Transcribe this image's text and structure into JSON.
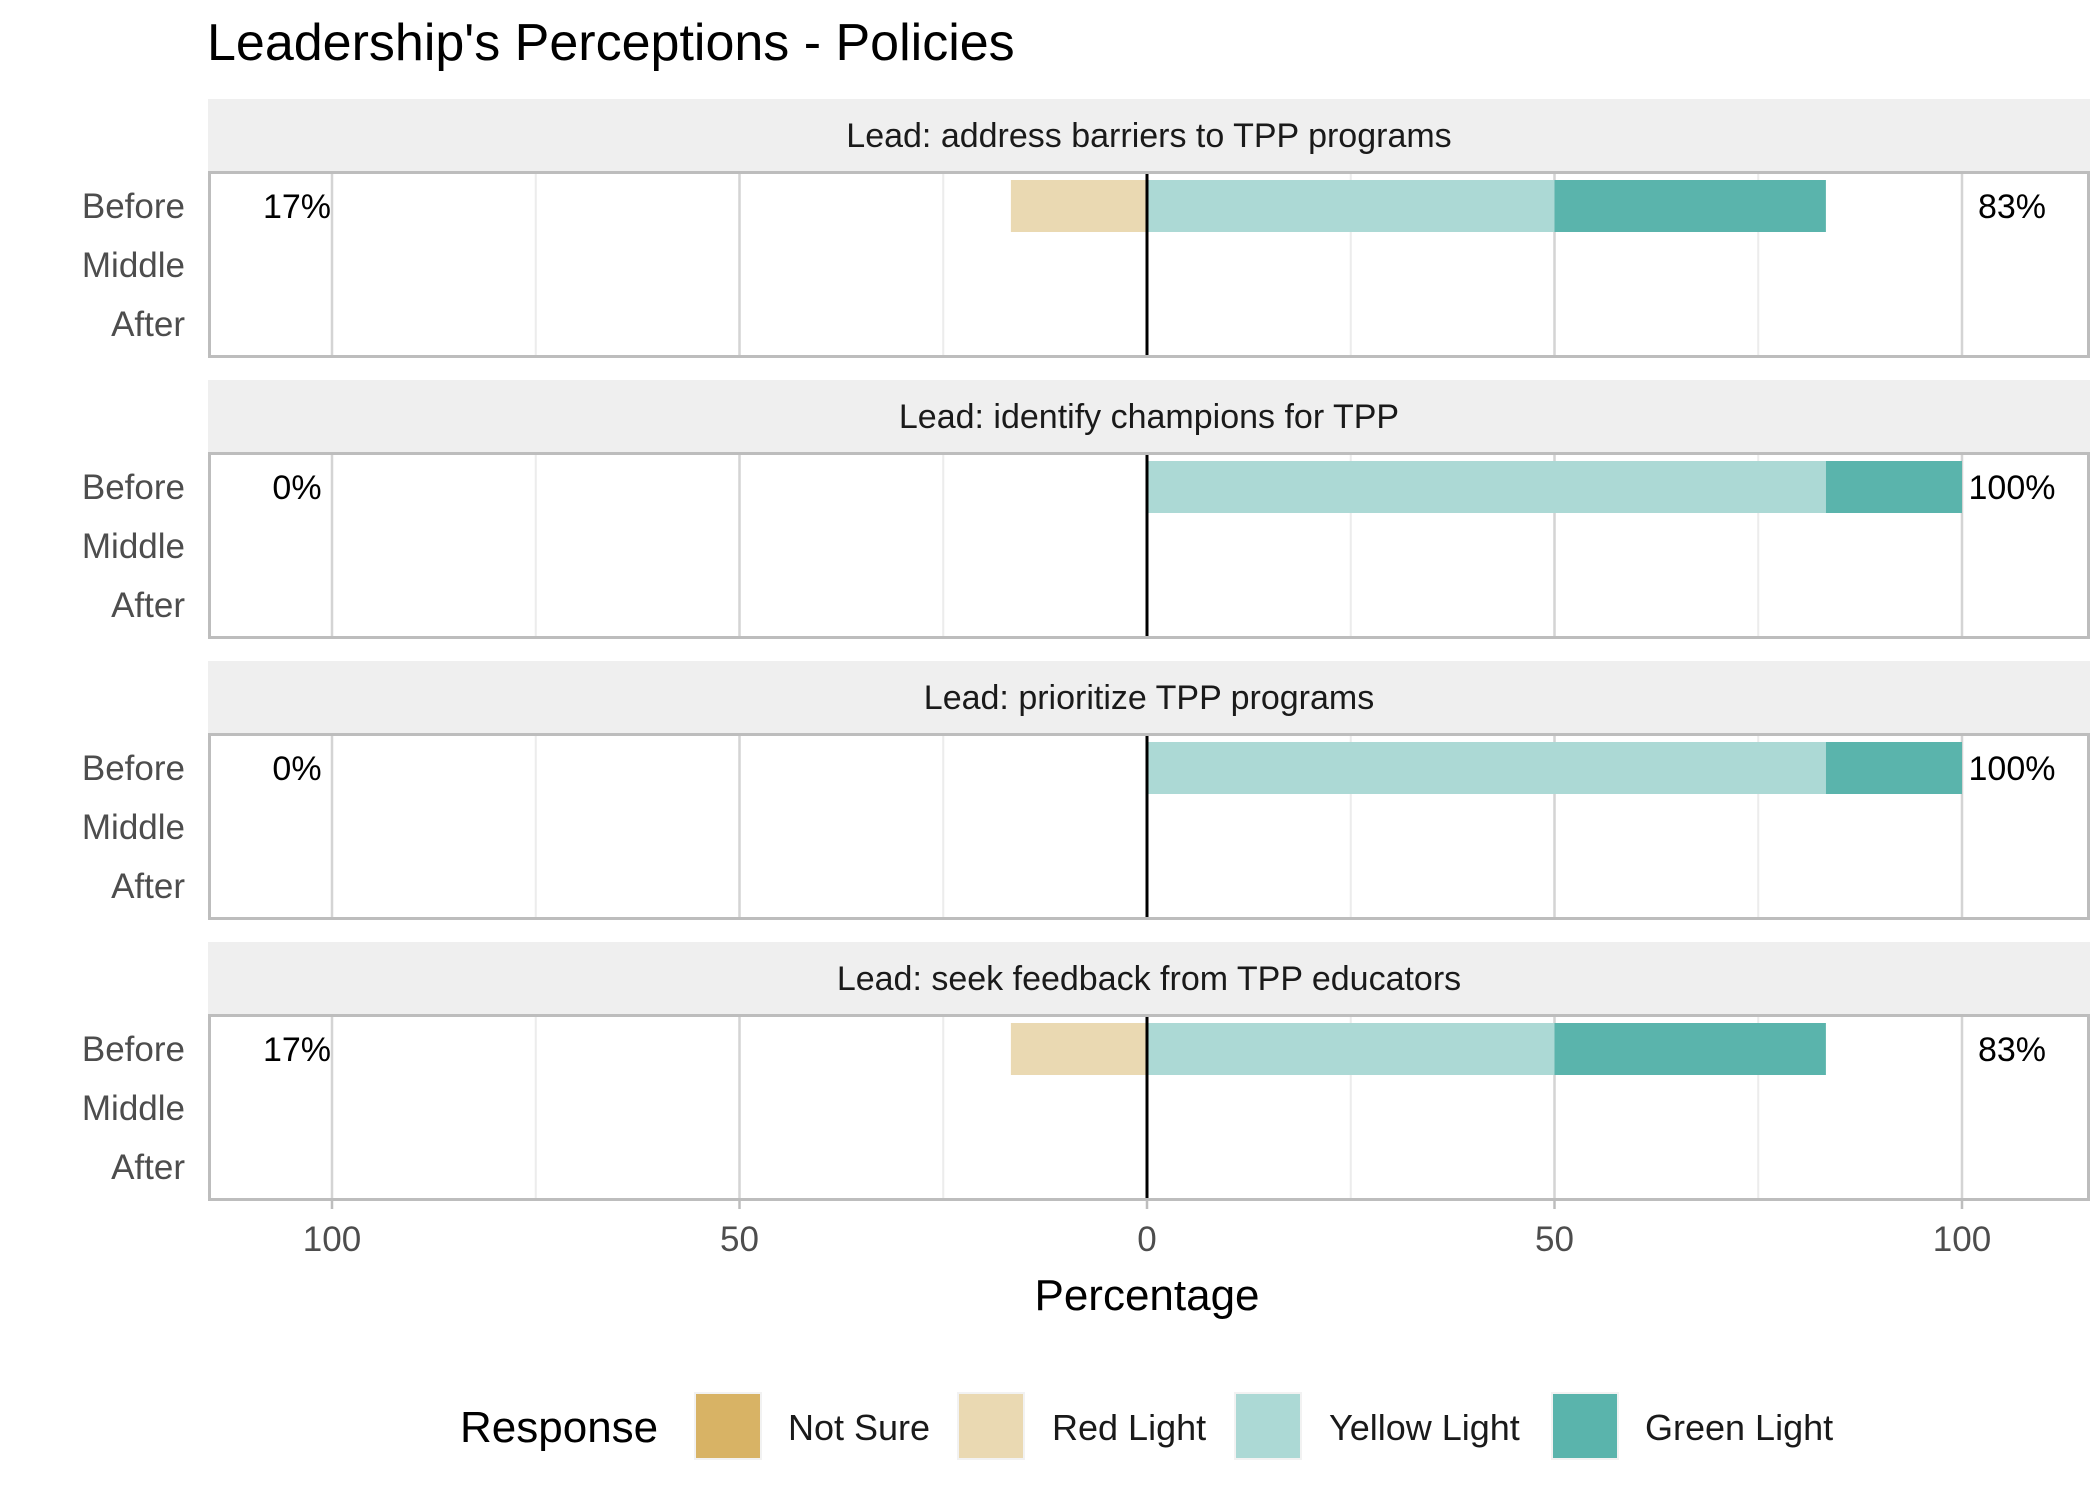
{
  "chart_data": {
    "type": "bar",
    "orientation": "horizontal-diverging",
    "title": "Leadership's Perceptions - Policies",
    "xlabel": "Percentage",
    "ylabel": "",
    "xlim": [
      -115,
      115
    ],
    "x_ticks": [
      -100,
      -50,
      0,
      50,
      100
    ],
    "x_tick_labels": [
      "100",
      "50",
      "0",
      "50",
      "100"
    ],
    "categories": [
      "Before",
      "Middle",
      "After"
    ],
    "legend": {
      "title": "Response",
      "position": "bottom",
      "entries": [
        {
          "name": "Not Sure",
          "color": "#d8b365"
        },
        {
          "name": "Red Light",
          "color": "#ead9b2"
        },
        {
          "name": "Yellow Light",
          "color": "#acd9d5"
        },
        {
          "name": "Green Light",
          "color": "#5ab4ac"
        }
      ]
    },
    "grid": true,
    "panels": [
      {
        "label": "Lead: address barriers to TPP programs",
        "rows": [
          {
            "period": "Before",
            "not_sure": 0,
            "red_light": 16.7,
            "yellow_light": 50,
            "green_light": 33.3,
            "low_label": "17%",
            "high_label": "83%"
          },
          {
            "period": "Middle",
            "not_sure": 0,
            "red_light": 0,
            "yellow_light": 0,
            "green_light": 0,
            "low_label": "",
            "high_label": ""
          },
          {
            "period": "After",
            "not_sure": 0,
            "red_light": 0,
            "yellow_light": 0,
            "green_light": 0,
            "low_label": "",
            "high_label": ""
          }
        ]
      },
      {
        "label": "Lead: identify champions for TPP",
        "rows": [
          {
            "period": "Before",
            "not_sure": 0,
            "red_light": 0,
            "yellow_light": 83.3,
            "green_light": 16.7,
            "low_label": "0%",
            "high_label": "100%"
          },
          {
            "period": "Middle",
            "not_sure": 0,
            "red_light": 0,
            "yellow_light": 0,
            "green_light": 0,
            "low_label": "",
            "high_label": ""
          },
          {
            "period": "After",
            "not_sure": 0,
            "red_light": 0,
            "yellow_light": 0,
            "green_light": 0,
            "low_label": "",
            "high_label": ""
          }
        ]
      },
      {
        "label": "Lead: prioritize TPP programs",
        "rows": [
          {
            "period": "Before",
            "not_sure": 0,
            "red_light": 0,
            "yellow_light": 83.3,
            "green_light": 16.7,
            "low_label": "0%",
            "high_label": "100%"
          },
          {
            "period": "Middle",
            "not_sure": 0,
            "red_light": 0,
            "yellow_light": 0,
            "green_light": 0,
            "low_label": "",
            "high_label": ""
          },
          {
            "period": "After",
            "not_sure": 0,
            "red_light": 0,
            "yellow_light": 0,
            "green_light": 0,
            "low_label": "",
            "high_label": ""
          }
        ]
      },
      {
        "label": "Lead: seek feedback from TPP educators",
        "rows": [
          {
            "period": "Before",
            "not_sure": 0,
            "red_light": 16.7,
            "yellow_light": 50,
            "green_light": 33.3,
            "low_label": "17%",
            "high_label": "83%"
          },
          {
            "period": "Middle",
            "not_sure": 0,
            "red_light": 0,
            "yellow_light": 0,
            "green_light": 0,
            "low_label": "",
            "high_label": ""
          },
          {
            "period": "After",
            "not_sure": 0,
            "red_light": 0,
            "yellow_light": 0,
            "green_light": 0,
            "low_label": "",
            "high_label": ""
          }
        ]
      }
    ]
  }
}
